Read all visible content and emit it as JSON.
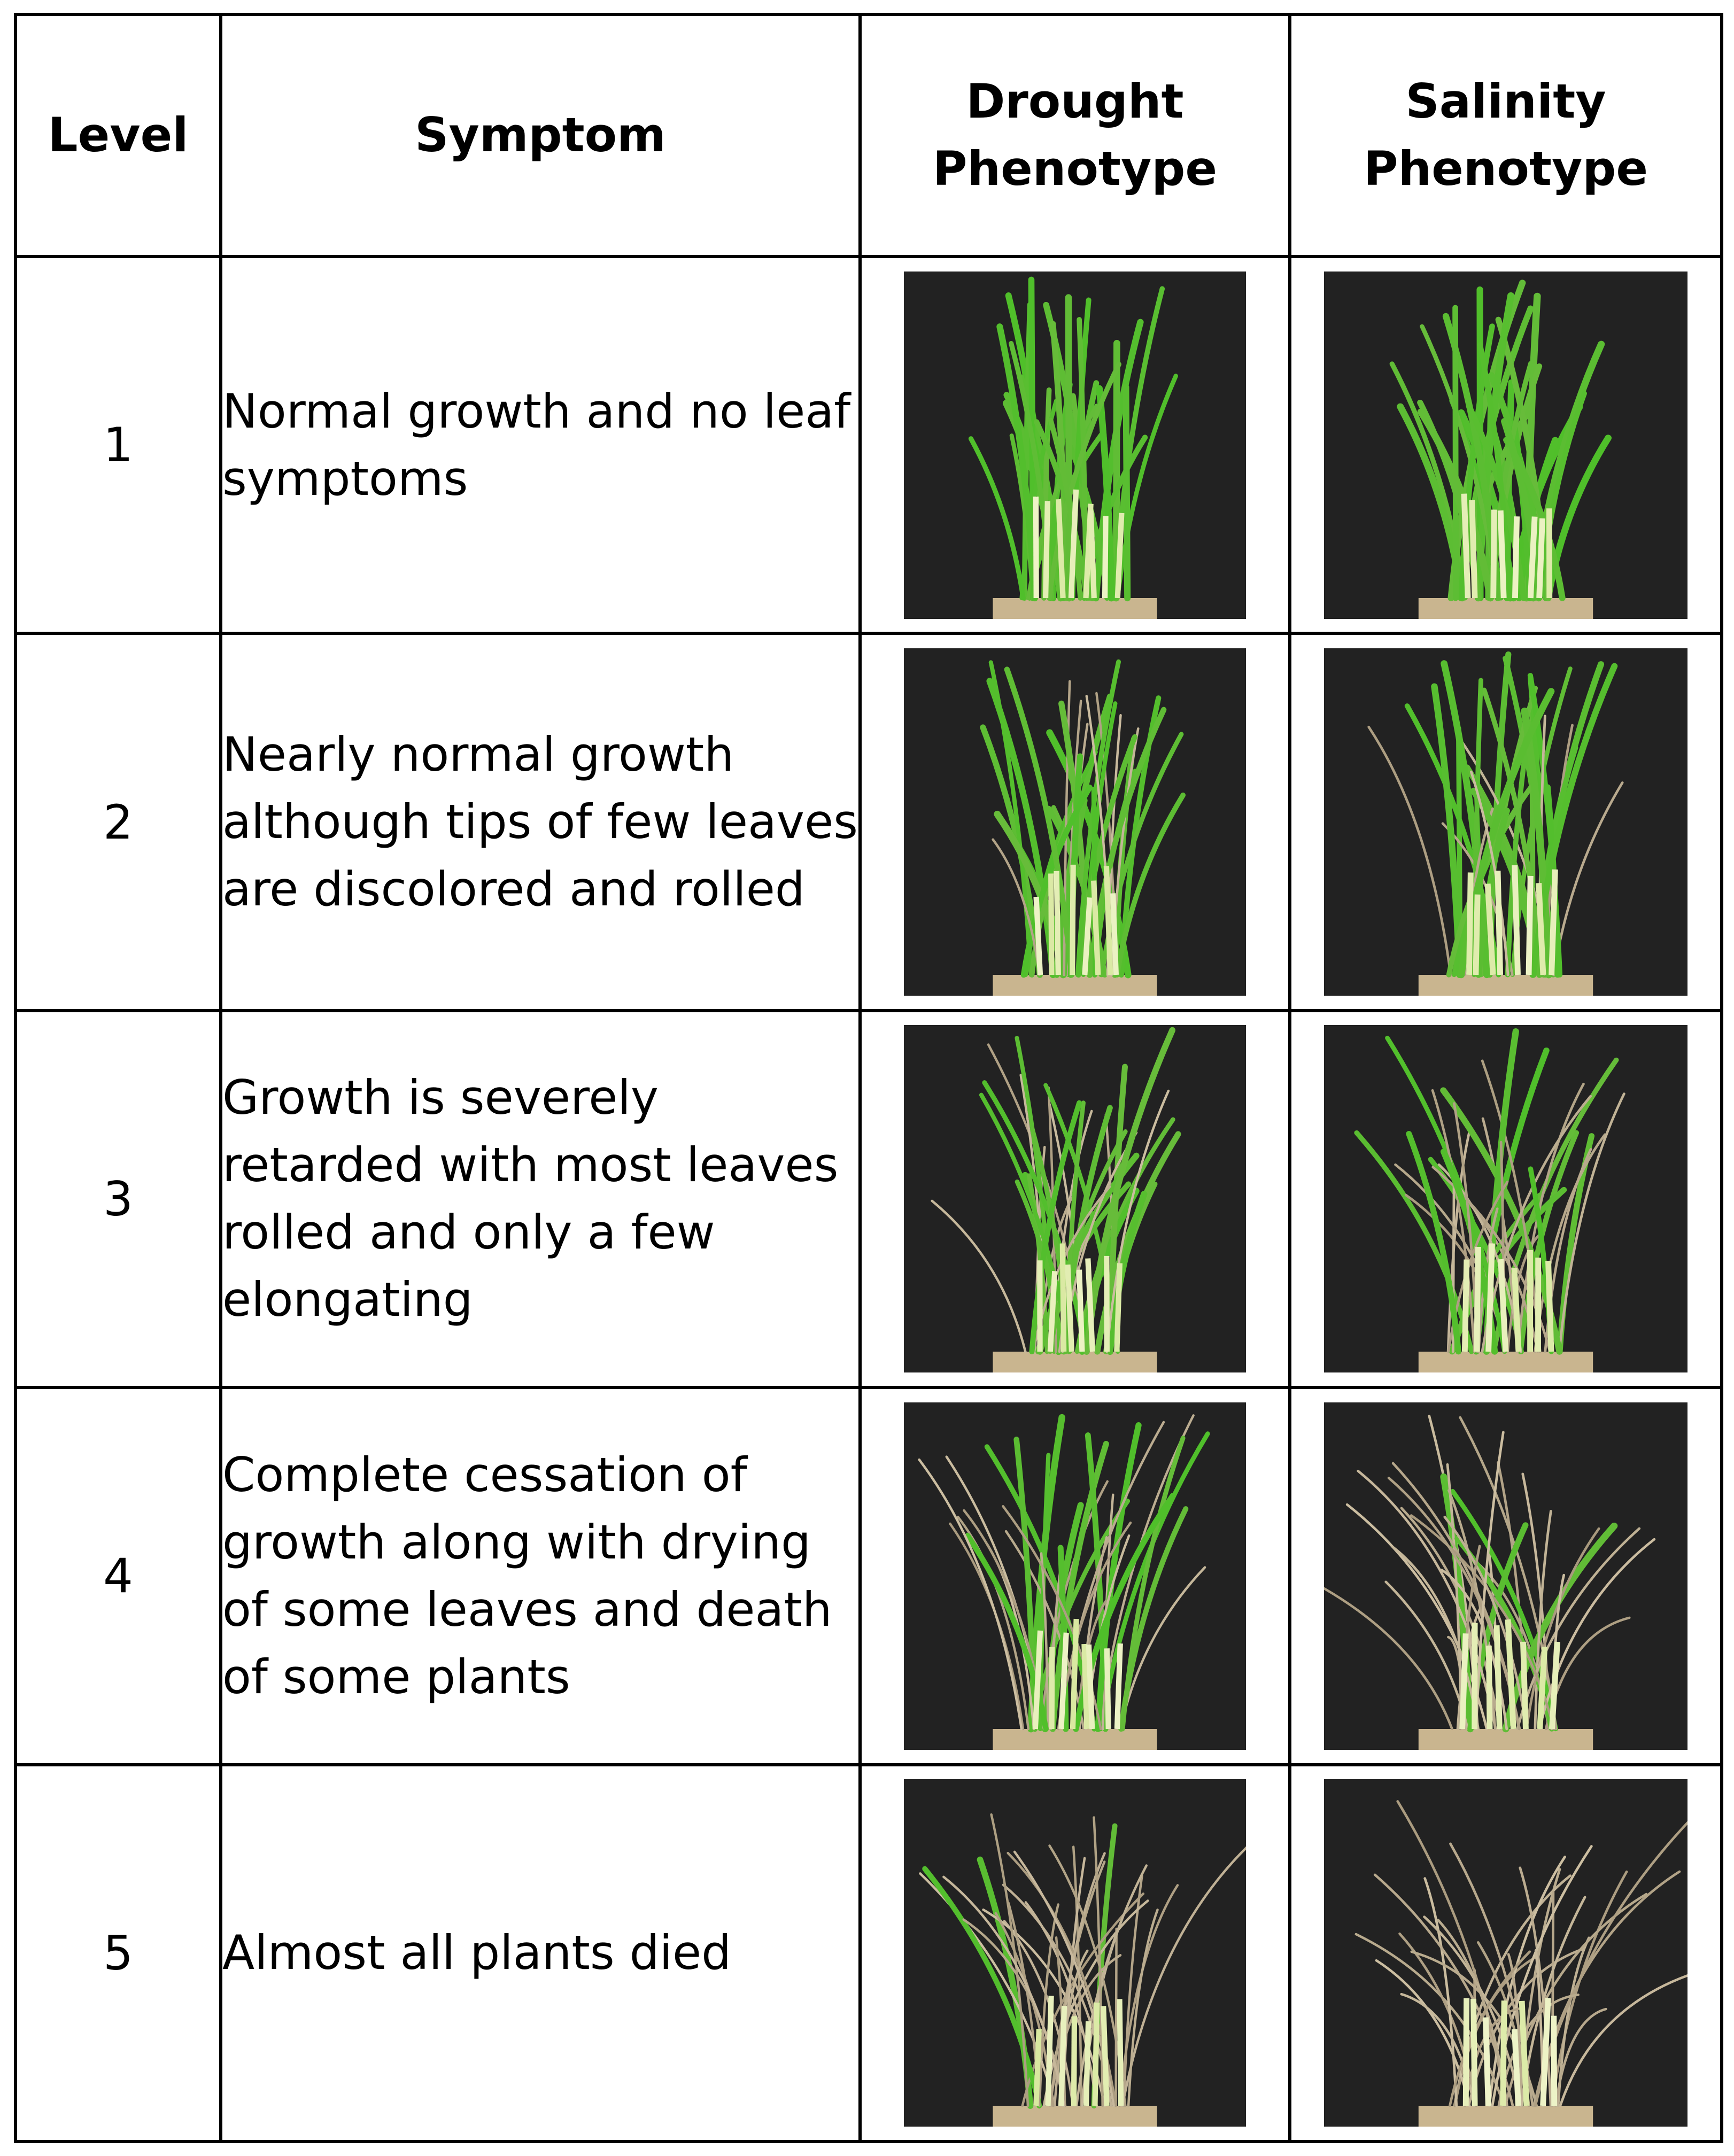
{
  "headers": {
    "level": "Level",
    "symptom": "Symptom",
    "drought": "Drought Phenotype",
    "salinity": "Salinity Phenotype"
  },
  "rows": [
    {
      "level": "1",
      "symptom": "Normal growth and no leaf symptoms"
    },
    {
      "level": "2",
      "symptom": "Nearly normal growth although tips of few leaves are discolored and rolled"
    },
    {
      "level": "3",
      "symptom": "Growth is severely retarded with most leaves rolled and only a few elongating"
    },
    {
      "level": "4",
      "symptom": "Complete cessation of growth along with drying of some leaves and death of some plants"
    },
    {
      "level": "5",
      "symptom": "Almost all plants died"
    }
  ]
}
